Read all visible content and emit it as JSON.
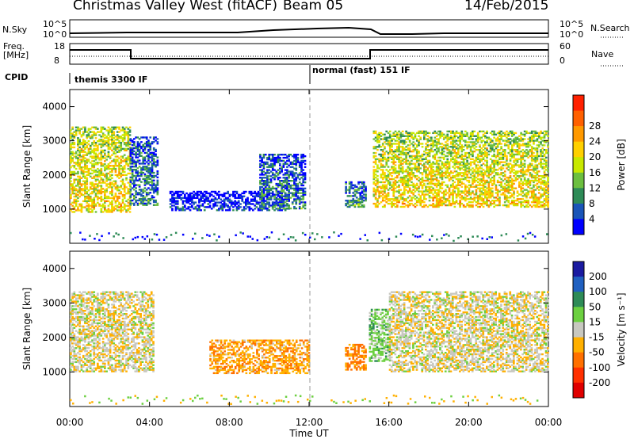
{
  "header": {
    "radar_name": "Christmas Valley West (fitACF)",
    "beam": "Beam 05",
    "date": "14/Feb/2015"
  },
  "nsky_panel": {
    "left_label": "N.Sky",
    "right_label": "N.Search",
    "left_ticks": [
      "10^5",
      "10^0"
    ],
    "right_ticks": [
      "10^5",
      "10^0"
    ]
  },
  "freq_panel": {
    "left_label_1": "Freq.",
    "left_label_2": "[MHz]",
    "right_label": "Nave",
    "left_ticks": [
      "18",
      "8"
    ],
    "right_ticks": [
      "60",
      "0"
    ]
  },
  "cpid": {
    "label": "CPID",
    "segments": [
      {
        "text": "themis 3300 IF",
        "start_hour": 0
      },
      {
        "text": "normal (fast) 151 IF",
        "start_hour": 12
      }
    ]
  },
  "chart_data": [
    {
      "type": "heatmap",
      "name": "power",
      "ylabel": "Slant Range [km]",
      "ylim": [
        0,
        4500
      ],
      "xlim": [
        0,
        24
      ],
      "x_ticks": [
        "00:00",
        "04:00",
        "08:00",
        "12:00",
        "16:00",
        "20:00",
        "00:00"
      ],
      "y_ticks": [
        1000,
        2000,
        3000,
        4000
      ],
      "colorbar": {
        "label": "Power [dB]",
        "ticks": [
          "4",
          "8",
          "12",
          "16",
          "20",
          "24",
          "28"
        ],
        "colors": [
          "#0000ff",
          "#1a55b8",
          "#2e8b57",
          "#6cbf3f",
          "#c8e800",
          "#ffd000",
          "#ff9900",
          "#ff6000",
          "#ff2000"
        ]
      },
      "regions": [
        {
          "t0": 0.0,
          "t1": 3.0,
          "r0": 900,
          "r1": 3400,
          "mean_level": 24
        },
        {
          "t0": 3.0,
          "t1": 4.4,
          "r0": 1100,
          "r1": 3100,
          "mean_level": 12
        },
        {
          "t0": 5.0,
          "t1": 11.0,
          "r0": 950,
          "r1": 1500,
          "mean_level": 6
        },
        {
          "t0": 9.5,
          "t1": 11.8,
          "r0": 1000,
          "r1": 2600,
          "mean_level": 12
        },
        {
          "t0": 13.8,
          "t1": 14.8,
          "r0": 1050,
          "r1": 1800,
          "mean_level": 14
        },
        {
          "t0": 15.2,
          "t1": 24.0,
          "r0": 1050,
          "r1": 3300,
          "mean_level": 24
        }
      ]
    },
    {
      "type": "heatmap",
      "name": "velocity",
      "ylabel": "Slant Range [km]",
      "xlabel": "Time UT",
      "ylim": [
        0,
        4500
      ],
      "xlim": [
        0,
        24
      ],
      "x_ticks": [
        "00:00",
        "04:00",
        "08:00",
        "12:00",
        "16:00",
        "20:00",
        "00:00"
      ],
      "y_ticks": [
        1000,
        2000,
        3000,
        4000
      ],
      "colorbar": {
        "label": "Velocity [m s⁻¹]",
        "ticks": [
          "200",
          "100",
          "50",
          "15",
          "-15",
          "-50",
          "-100",
          "-200"
        ],
        "colors": [
          "#1a1aa0",
          "#2060c0",
          "#2e8b57",
          "#6cd040",
          "#c8c8c0",
          "#ffb000",
          "#ff7000",
          "#ff3000",
          "#e00000"
        ]
      },
      "regions": [
        {
          "t0": 0.0,
          "t1": 4.2,
          "r0": 1000,
          "r1": 3300,
          "mean_velocity": -5
        },
        {
          "t0": 7.0,
          "t1": 12.0,
          "r0": 950,
          "r1": 1900,
          "mean_velocity": -40
        },
        {
          "t0": 13.8,
          "t1": 14.8,
          "r0": 1050,
          "r1": 1800,
          "mean_velocity": -60
        },
        {
          "t0": 15.0,
          "t1": 16.0,
          "r0": 1300,
          "r1": 2800,
          "mean_velocity": 30
        },
        {
          "t0": 16.0,
          "t1": 24.0,
          "r0": 1000,
          "r1": 3300,
          "mean_velocity": -5
        }
      ]
    }
  ]
}
